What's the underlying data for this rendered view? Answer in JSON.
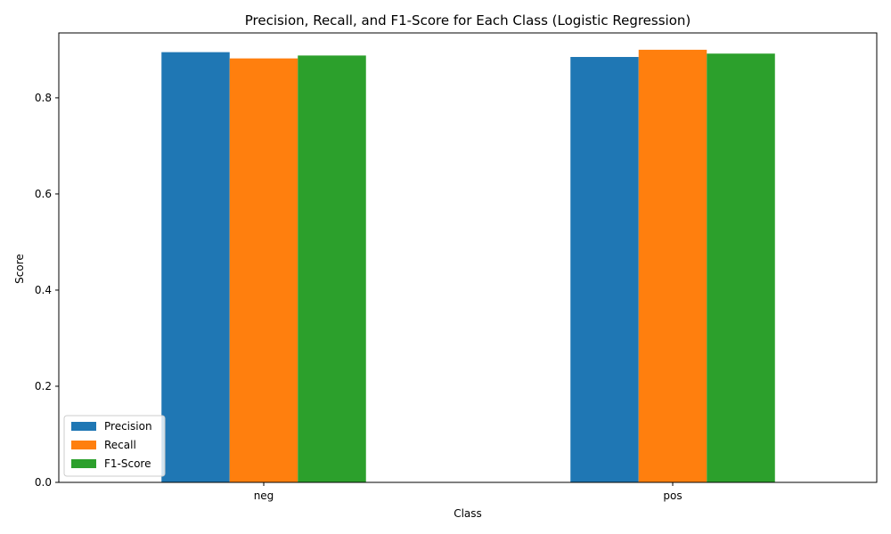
{
  "chart_data": {
    "type": "bar",
    "title": "Precision, Recall, and F1-Score for Each Class (Logistic Regression)",
    "xlabel": "Class",
    "ylabel": "Score",
    "categories": [
      "neg",
      "pos"
    ],
    "ylim": [
      0,
      0.935
    ],
    "yticks": [
      0.0,
      0.2,
      0.4,
      0.6,
      0.8
    ],
    "ytick_labels": [
      "0.0",
      "0.2",
      "0.4",
      "0.6",
      "0.8"
    ],
    "series": [
      {
        "name": "Precision",
        "color": "#1f77b4",
        "values": [
          0.895,
          0.885
        ]
      },
      {
        "name": "Recall",
        "color": "#ff7f0e",
        "values": [
          0.882,
          0.9
        ]
      },
      {
        "name": "F1-Score",
        "color": "#2ca02c",
        "values": [
          0.888,
          0.892
        ]
      }
    ],
    "legend_position": "lower-left",
    "grid": false
  }
}
